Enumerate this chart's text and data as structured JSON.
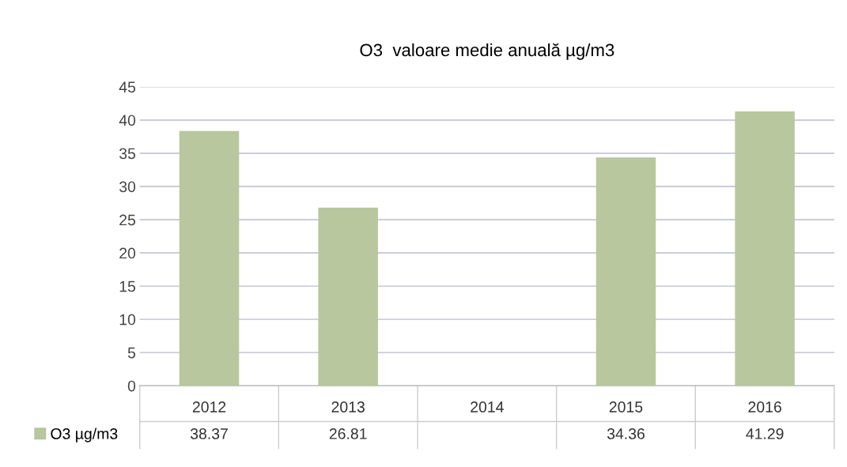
{
  "chart_data": {
    "type": "bar",
    "title": "O3  valoare medie anuală µg/m3",
    "categories": [
      "2012",
      "2013",
      "2014",
      "2015",
      "2016"
    ],
    "series": [
      {
        "name": "O3 µg/m3",
        "color": "#b8c79e",
        "values": [
          38.37,
          26.81,
          null,
          34.36,
          41.29
        ]
      }
    ],
    "ylim": [
      0,
      45
    ],
    "yticks": [
      0,
      5,
      10,
      15,
      20,
      25,
      30,
      35,
      40,
      45
    ],
    "grid": "y",
    "legend": "bottom left",
    "data_labels": true
  }
}
